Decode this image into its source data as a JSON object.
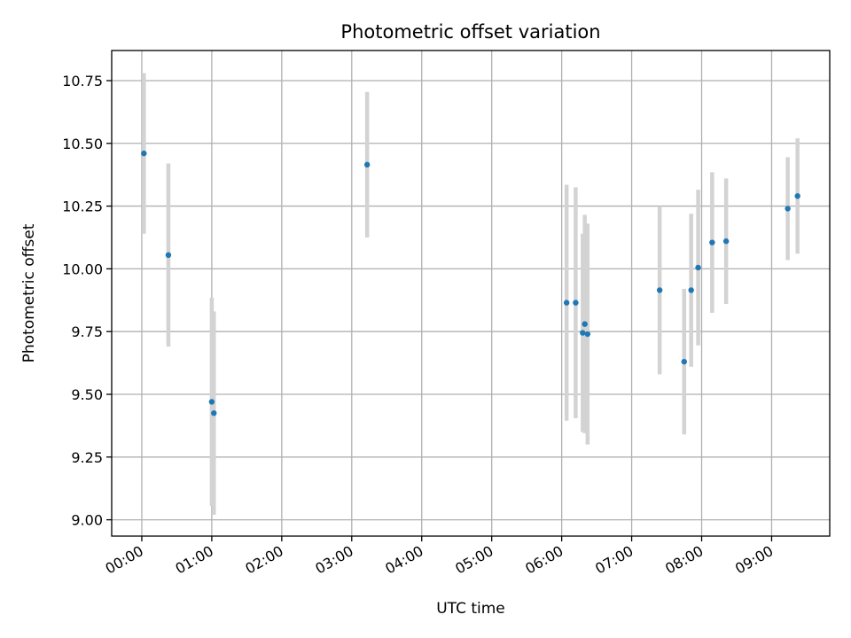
{
  "chart_data": {
    "type": "scatter",
    "title": "Photometric offset variation",
    "xlabel": "UTC time",
    "ylabel": "Photometric offset",
    "x_unit": "hours UTC",
    "xlim": [
      -0.43,
      9.83
    ],
    "ylim": [
      8.935,
      10.87
    ],
    "x_ticks": [
      0,
      1,
      2,
      3,
      4,
      5,
      6,
      7,
      8,
      9
    ],
    "x_tick_labels": [
      "00:00",
      "01:00",
      "02:00",
      "03:00",
      "04:00",
      "05:00",
      "06:00",
      "07:00",
      "08:00",
      "09:00"
    ],
    "y_ticks": [
      9.0,
      9.25,
      9.5,
      9.75,
      10.0,
      10.25,
      10.5,
      10.75
    ],
    "y_tick_labels": [
      "9.00",
      "9.25",
      "9.50",
      "9.75",
      "10.00",
      "10.25",
      "10.50",
      "10.75"
    ],
    "grid": true,
    "point_color": "#1f77b4",
    "errorbar_color": "#d3d3d3",
    "points": [
      {
        "x": 0.03,
        "y": 10.46,
        "err": 0.32
      },
      {
        "x": 0.38,
        "y": 10.055,
        "err": 0.365
      },
      {
        "x": 1.0,
        "y": 9.47,
        "err": 0.415
      },
      {
        "x": 1.03,
        "y": 9.425,
        "err": 0.405
      },
      {
        "x": 3.22,
        "y": 10.415,
        "err": 0.29
      },
      {
        "x": 6.07,
        "y": 9.865,
        "err": 0.47
      },
      {
        "x": 6.2,
        "y": 9.865,
        "err": 0.46
      },
      {
        "x": 6.3,
        "y": 9.745,
        "err": 0.395
      },
      {
        "x": 6.33,
        "y": 9.78,
        "err": 0.435
      },
      {
        "x": 6.37,
        "y": 9.74,
        "err": 0.44
      },
      {
        "x": 7.4,
        "y": 9.915,
        "err": 0.335
      },
      {
        "x": 7.75,
        "y": 9.63,
        "err": 0.29
      },
      {
        "x": 7.85,
        "y": 9.915,
        "err": 0.305
      },
      {
        "x": 7.95,
        "y": 10.005,
        "err": 0.31
      },
      {
        "x": 8.15,
        "y": 10.105,
        "err": 0.28
      },
      {
        "x": 8.35,
        "y": 10.11,
        "err": 0.25
      },
      {
        "x": 9.23,
        "y": 10.24,
        "err": 0.205
      },
      {
        "x": 9.37,
        "y": 10.29,
        "err": 0.23
      }
    ]
  }
}
